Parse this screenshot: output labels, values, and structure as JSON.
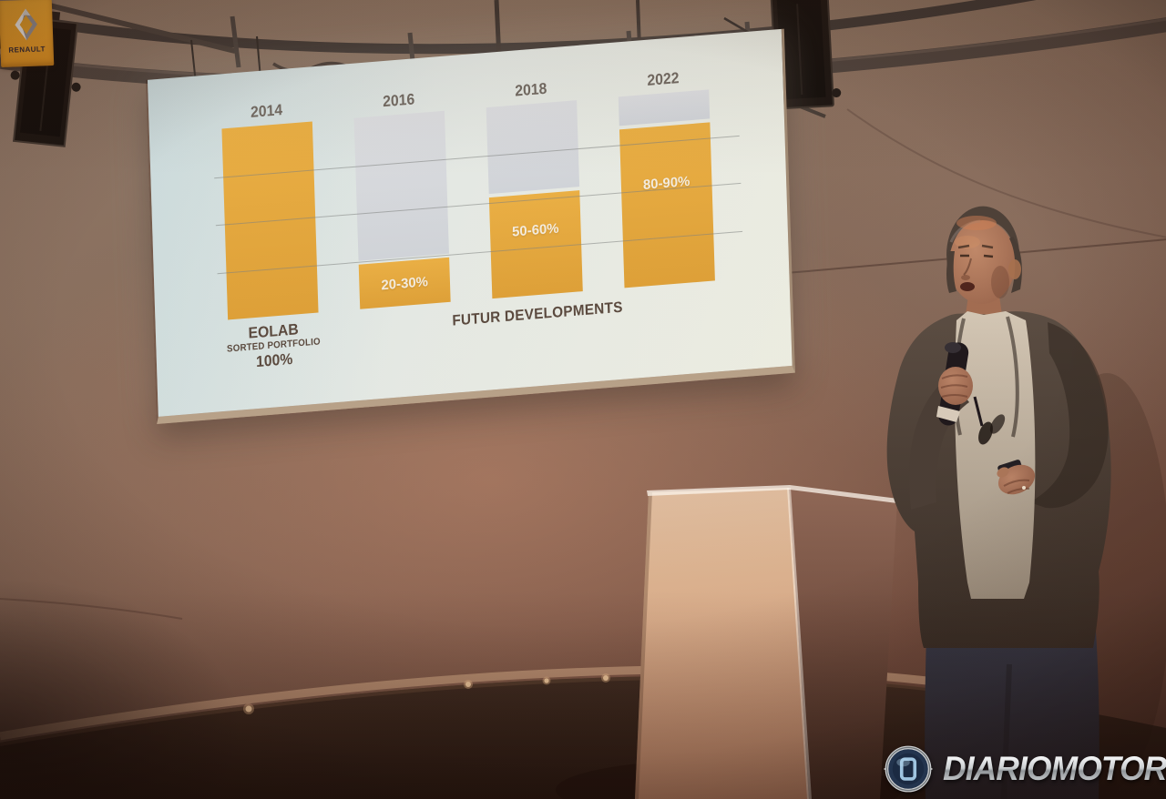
{
  "slide": {
    "eolab_line1": "EOLAB",
    "eolab_line2": "SORTED PORTFOLIO",
    "eolab_line3": "100%",
    "futur_label": "FUTUR DEVELOPMENTS"
  },
  "chart_data": {
    "type": "bar",
    "categories": [
      "2014",
      "2016",
      "2018",
      "2022"
    ],
    "series": [
      {
        "name": "achieved-share-yellow",
        "values": [
          100,
          25,
          55,
          85
        ]
      },
      {
        "name": "remaining-share-grey",
        "values": [
          0,
          75,
          45,
          15
        ]
      }
    ],
    "bar_value_labels": [
      "",
      "20-30%",
      "50-60%",
      "80-90%"
    ],
    "group_labels": {
      "first_bar": "EOLAB SORTED PORTFOLIO 100%",
      "other_bars": "FUTUR DEVELOPMENTS"
    },
    "ylim": [
      0,
      100
    ],
    "gridlines_pct": [
      25,
      50,
      75
    ],
    "colors": {
      "achieved": "#e3aa3e",
      "remaining": "#d7dee3",
      "label_text": "#56493f",
      "value_text": "#f6f2e6"
    }
  },
  "podium": {
    "brand": "RENAULT",
    "badge_color": "#eba42b"
  },
  "watermark": {
    "text": "DIARIOMOTOR",
    "color": "#c8cacc"
  }
}
